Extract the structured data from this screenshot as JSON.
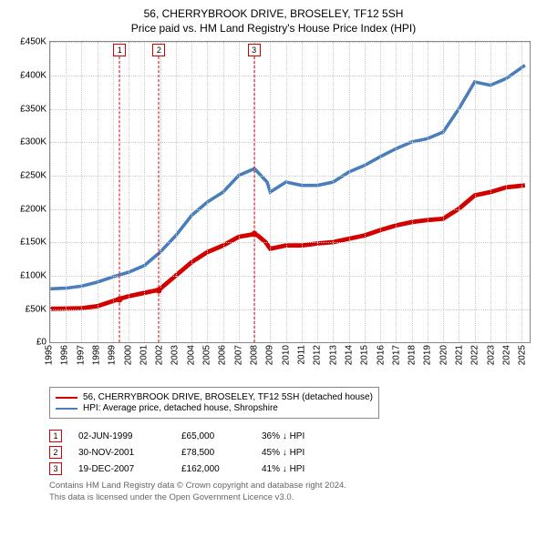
{
  "title": {
    "line1": "56, CHERRYBROOK DRIVE, BROSELEY, TF12 5SH",
    "line2": "Price paid vs. HM Land Registry's House Price Index (HPI)",
    "fontsize": 12
  },
  "chart": {
    "type": "line",
    "background_color": "#ffffff",
    "grid_color": "#cccccc",
    "axis_color": "#888888",
    "xlim": [
      1995,
      2025.5
    ],
    "ylim": [
      0,
      450000
    ],
    "yticks": [
      0,
      50000,
      100000,
      150000,
      200000,
      250000,
      300000,
      350000,
      400000,
      450000
    ],
    "ytick_labels": [
      "£0",
      "£50K",
      "£100K",
      "£150K",
      "£200K",
      "£250K",
      "£300K",
      "£350K",
      "£400K",
      "£450K"
    ],
    "xticks": [
      1995,
      1996,
      1997,
      1998,
      1999,
      2000,
      2001,
      2002,
      2003,
      2004,
      2005,
      2006,
      2007,
      2008,
      2009,
      2010,
      2011,
      2012,
      2013,
      2014,
      2015,
      2016,
      2017,
      2018,
      2019,
      2020,
      2021,
      2022,
      2023,
      2024,
      2025
    ],
    "tick_fontsize": 10,
    "series": [
      {
        "name": "price_paid",
        "label": "56, CHERRYBROOK DRIVE, BROSELEY, TF12 5SH (detached house)",
        "color": "#d40000",
        "line_width": 1.6,
        "data": [
          [
            1995,
            50000
          ],
          [
            1996,
            50500
          ],
          [
            1997,
            51000
          ],
          [
            1998,
            54000
          ],
          [
            1999.42,
            65000
          ],
          [
            2000,
            69000
          ],
          [
            2001,
            74000
          ],
          [
            2001.92,
            78500
          ],
          [
            2003,
            100000
          ],
          [
            2004,
            120000
          ],
          [
            2005,
            135000
          ],
          [
            2006,
            145000
          ],
          [
            2007,
            158000
          ],
          [
            2007.97,
            162000
          ],
          [
            2008.2,
            160000
          ],
          [
            2008.7,
            150000
          ],
          [
            2009,
            140000
          ],
          [
            2010,
            145000
          ],
          [
            2011,
            145000
          ],
          [
            2012,
            148000
          ],
          [
            2013,
            150000
          ],
          [
            2014,
            155000
          ],
          [
            2015,
            160000
          ],
          [
            2016,
            168000
          ],
          [
            2017,
            175000
          ],
          [
            2018,
            180000
          ],
          [
            2019,
            183000
          ],
          [
            2020,
            185000
          ],
          [
            2021,
            200000
          ],
          [
            2022,
            220000
          ],
          [
            2023,
            225000
          ],
          [
            2024,
            232000
          ],
          [
            2025.2,
            235000
          ]
        ]
      },
      {
        "name": "hpi",
        "label": "HPI: Average price, detached house, Shropshire",
        "color": "#4a7ebb",
        "line_width": 1.2,
        "data": [
          [
            1995,
            80000
          ],
          [
            1996,
            81000
          ],
          [
            1997,
            84000
          ],
          [
            1998,
            90000
          ],
          [
            1999,
            98000
          ],
          [
            2000,
            105000
          ],
          [
            2001,
            115000
          ],
          [
            2002,
            135000
          ],
          [
            2003,
            160000
          ],
          [
            2004,
            190000
          ],
          [
            2005,
            210000
          ],
          [
            2006,
            225000
          ],
          [
            2007,
            250000
          ],
          [
            2008,
            260000
          ],
          [
            2008.8,
            240000
          ],
          [
            2009,
            225000
          ],
          [
            2010,
            240000
          ],
          [
            2011,
            235000
          ],
          [
            2012,
            235000
          ],
          [
            2013,
            240000
          ],
          [
            2014,
            255000
          ],
          [
            2015,
            265000
          ],
          [
            2016,
            278000
          ],
          [
            2017,
            290000
          ],
          [
            2018,
            300000
          ],
          [
            2019,
            305000
          ],
          [
            2020,
            315000
          ],
          [
            2021,
            350000
          ],
          [
            2022,
            390000
          ],
          [
            2023,
            385000
          ],
          [
            2024,
            395000
          ],
          [
            2025.2,
            415000
          ]
        ]
      }
    ],
    "markers": [
      {
        "id": "1",
        "x": 1999.42,
        "y": 65000,
        "date": "02-JUN-1999",
        "price": "£65,000",
        "pct": "36% ↓ HPI",
        "color": "#d40000"
      },
      {
        "id": "2",
        "x": 2001.92,
        "y": 78500,
        "date": "30-NOV-2001",
        "price": "£78,500",
        "pct": "45% ↓ HPI",
        "color": "#d40000"
      },
      {
        "id": "3",
        "x": 2007.97,
        "y": 162000,
        "date": "19-DEC-2007",
        "price": "£162,000",
        "pct": "41% ↓ HPI",
        "color": "#d40000"
      }
    ]
  },
  "legend_title": "",
  "footer": {
    "line1": "Contains HM Land Registry data © Crown copyright and database right 2024.",
    "line2": "This data is licensed under the Open Government Licence v3.0."
  }
}
